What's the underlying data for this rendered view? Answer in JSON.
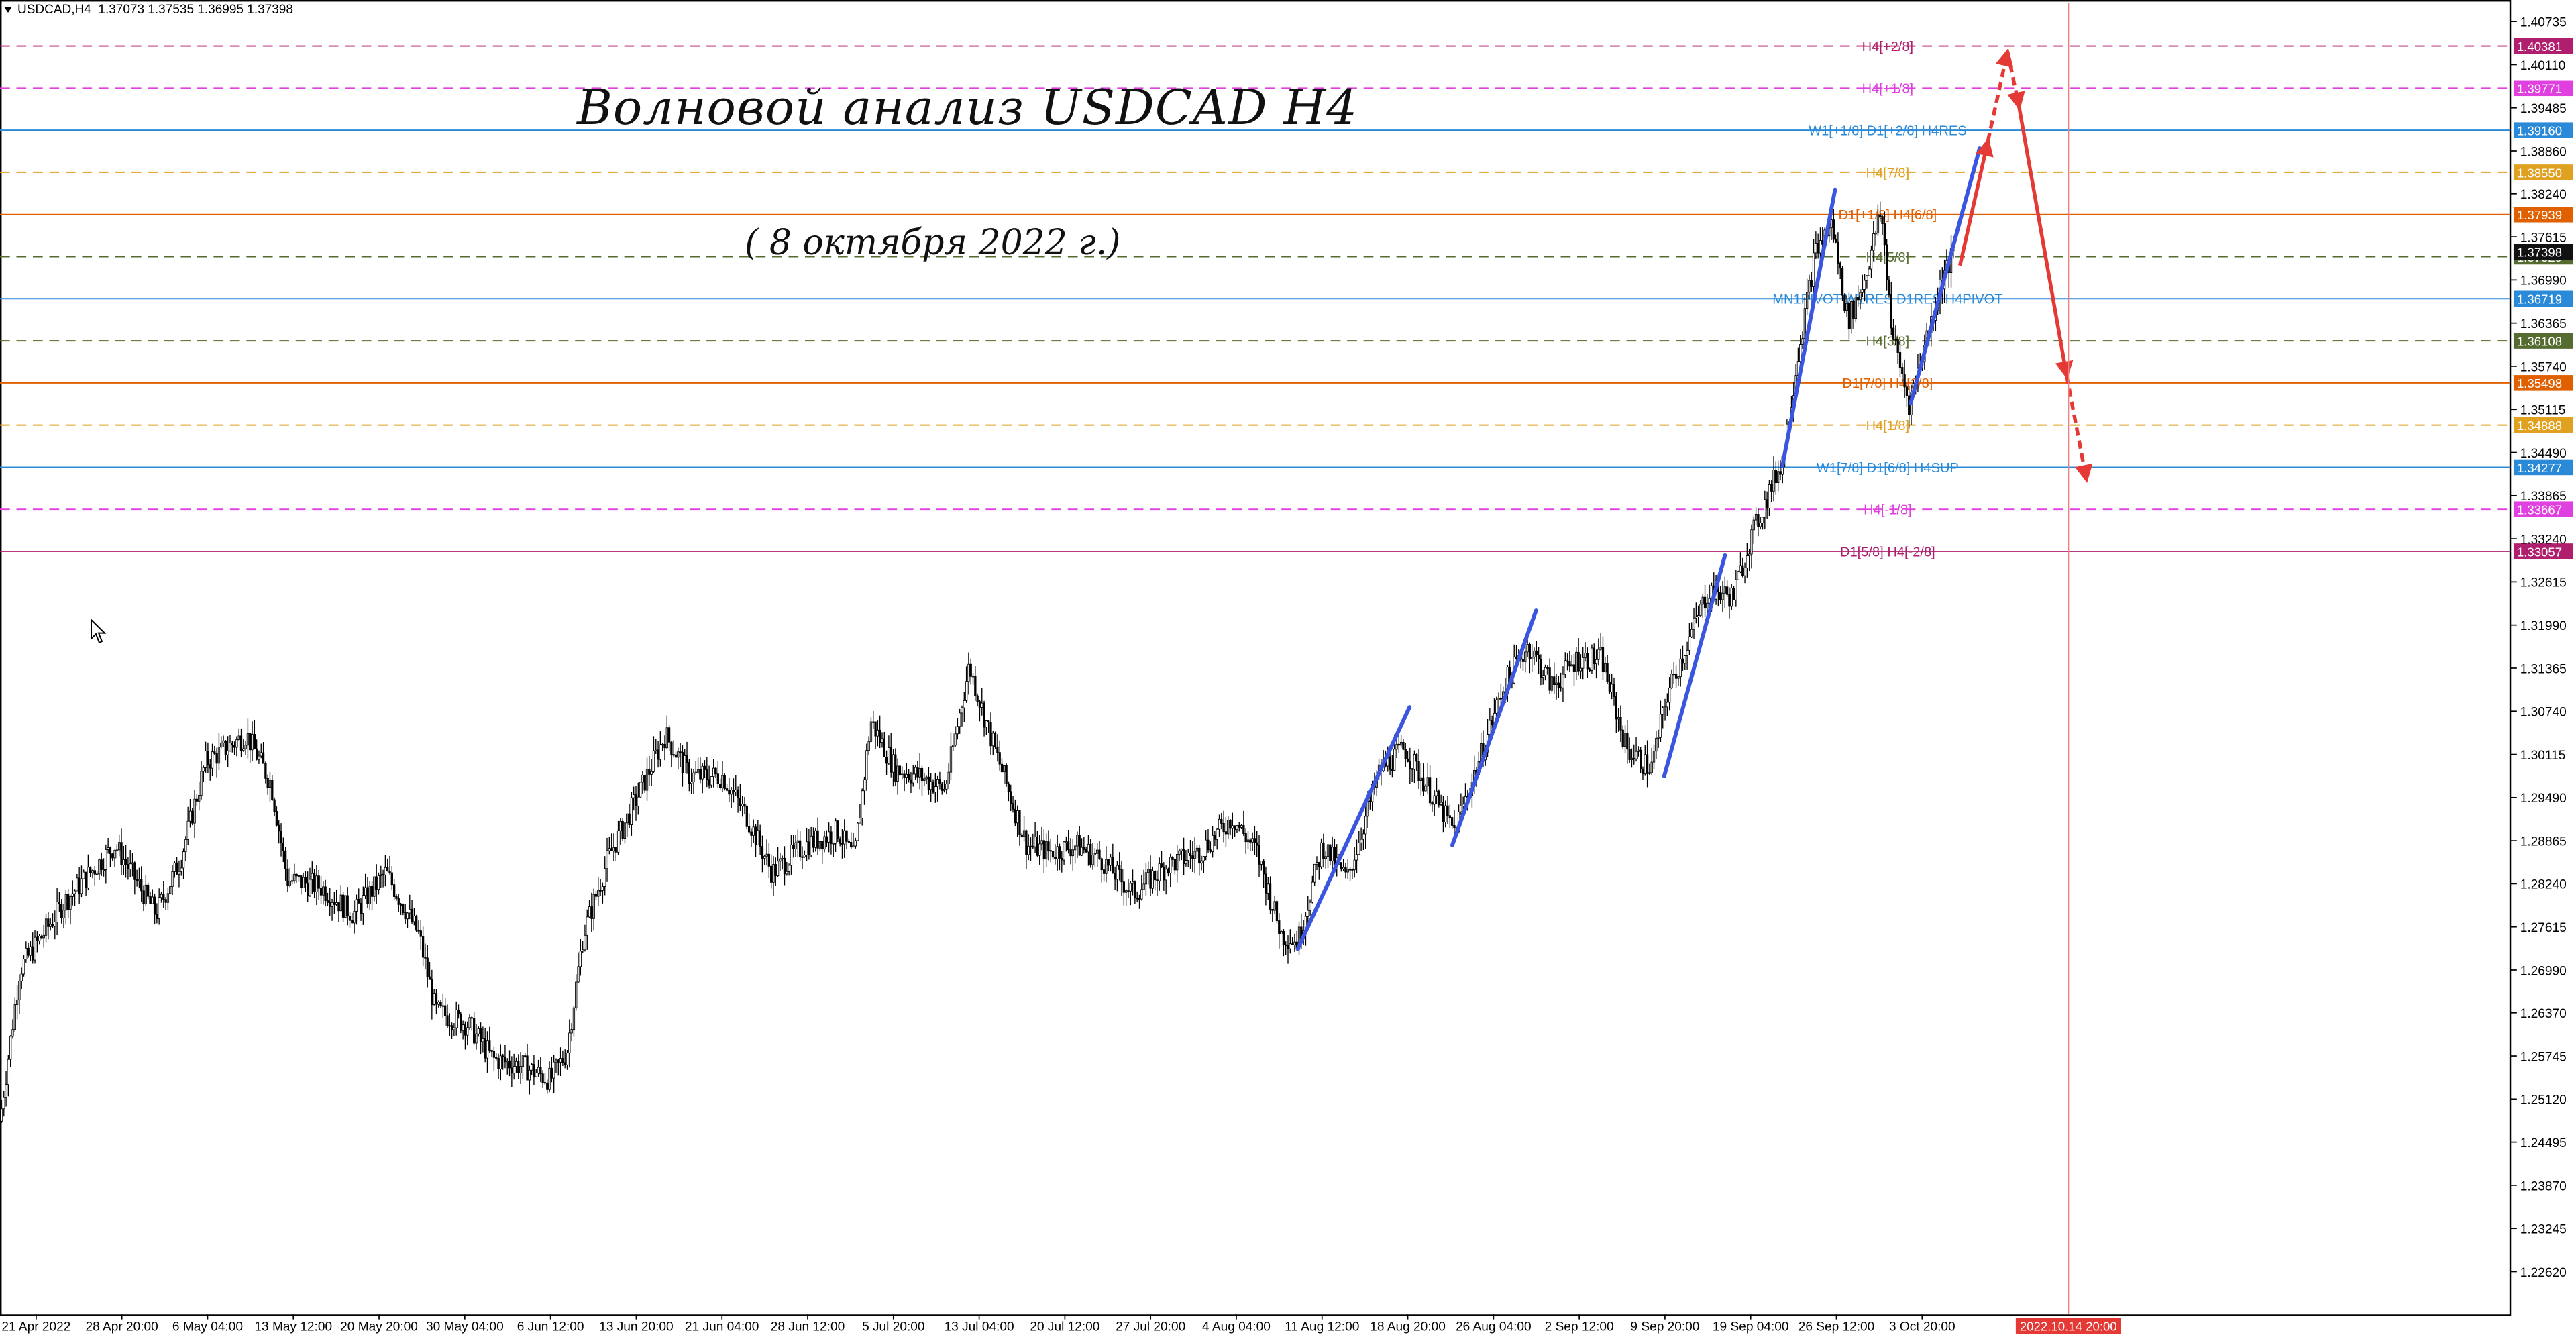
{
  "header": {
    "symbol": "USDCAD,H4",
    "ohlc": "1.37073 1.37535 1.36995 1.37398"
  },
  "annotation": {
    "title": "Волновой анализ USDCAD H4",
    "subtitle": "( 8 октября 2022 г.)"
  },
  "colors": {
    "background": "#ffffff",
    "candle": "#000000",
    "wave_blue": "#3a56e0",
    "forecast_red": "#e53935",
    "vline_red": "#f08080",
    "grid": "#d9d9d9"
  },
  "chart_data": {
    "type": "candlestick",
    "symbol": "USDCAD",
    "timeframe": "H4",
    "ylim": [
      1.22,
      1.41
    ],
    "y_ticks": [
      "1.40735",
      "1.40110",
      "1.39485",
      "1.38860",
      "1.38240",
      "1.37615",
      "1.36990",
      "1.36365",
      "1.35740",
      "1.35115",
      "1.34490",
      "1.33865",
      "1.33240",
      "1.32615",
      "1.31990",
      "1.31365",
      "1.30740",
      "1.30115",
      "1.29490",
      "1.28865",
      "1.28240",
      "1.27615",
      "1.26990",
      "1.26370",
      "1.25745",
      "1.25120",
      "1.24495",
      "1.23870",
      "1.23245",
      "1.22620"
    ],
    "x_labels": [
      "21 Apr 2022",
      "28 Apr 20:00",
      "6 May 04:00",
      "13 May 12:00",
      "20 May 20:00",
      "30 May 04:00",
      "6 Jun 12:00",
      "13 Jun 20:00",
      "21 Jun 04:00",
      "28 Jun 12:00",
      "5 Jul 20:00",
      "13 Jul 04:00",
      "20 Jul 12:00",
      "27 Jul 20:00",
      "4 Aug 04:00",
      "11 Aug 12:00",
      "18 Aug 20:00",
      "26 Aug 04:00",
      "2 Sep 12:00",
      "9 Sep 20:00",
      "19 Sep 04:00",
      "26 Sep 12:00",
      "3 Oct 20:00"
    ],
    "price_path": [
      [
        0,
        1.248
      ],
      [
        12,
        1.27
      ],
      [
        40,
        1.28
      ],
      [
        70,
        1.288
      ],
      [
        95,
        1.278
      ],
      [
        110,
        1.286
      ],
      [
        125,
        1.3
      ],
      [
        150,
        1.304
      ],
      [
        165,
        1.297
      ],
      [
        175,
        1.283
      ],
      [
        195,
        1.282
      ],
      [
        215,
        1.278
      ],
      [
        235,
        1.284
      ],
      [
        255,
        1.275
      ],
      [
        265,
        1.264
      ],
      [
        285,
        1.262
      ],
      [
        300,
        1.257
      ],
      [
        318,
        1.256
      ],
      [
        335,
        1.254
      ],
      [
        345,
        1.258
      ],
      [
        355,
        1.275
      ],
      [
        370,
        1.286
      ],
      [
        390,
        1.296
      ],
      [
        405,
        1.304
      ],
      [
        420,
        1.298
      ],
      [
        440,
        1.298
      ],
      [
        455,
        1.292
      ],
      [
        470,
        1.284
      ],
      [
        490,
        1.288
      ],
      [
        510,
        1.29
      ],
      [
        520,
        1.286
      ],
      [
        530,
        1.306
      ],
      [
        545,
        1.299
      ],
      [
        560,
        1.298
      ],
      [
        575,
        1.296
      ],
      [
        590,
        1.314
      ],
      [
        600,
        1.306
      ],
      [
        615,
        1.295
      ],
      [
        625,
        1.288
      ],
      [
        640,
        1.287
      ],
      [
        655,
        1.288
      ],
      [
        670,
        1.286
      ],
      [
        690,
        1.281
      ],
      [
        710,
        1.285
      ],
      [
        730,
        1.287
      ],
      [
        750,
        1.292
      ],
      [
        765,
        1.287
      ],
      [
        780,
        1.275
      ],
      [
        790,
        1.274
      ],
      [
        805,
        1.288
      ],
      [
        820,
        1.283
      ],
      [
        840,
        1.299
      ],
      [
        855,
        1.302
      ],
      [
        870,
        1.296
      ],
      [
        885,
        1.29
      ],
      [
        900,
        1.3
      ],
      [
        915,
        1.311
      ],
      [
        930,
        1.317
      ],
      [
        945,
        1.311
      ],
      [
        960,
        1.315
      ],
      [
        975,
        1.315
      ],
      [
        990,
        1.302
      ],
      [
        1005,
        1.299
      ],
      [
        1015,
        1.31
      ],
      [
        1025,
        1.316
      ],
      [
        1040,
        1.325
      ],
      [
        1055,
        1.324
      ],
      [
        1065,
        1.332
      ],
      [
        1075,
        1.338
      ],
      [
        1085,
        1.344
      ],
      [
        1095,
        1.36
      ],
      [
        1105,
        1.374
      ],
      [
        1115,
        1.378
      ],
      [
        1125,
        1.364
      ],
      [
        1135,
        1.37
      ],
      [
        1145,
        1.38
      ],
      [
        1152,
        1.362
      ],
      [
        1162,
        1.352
      ],
      [
        1172,
        1.361
      ],
      [
        1182,
        1.37
      ],
      [
        1190,
        1.374
      ]
    ],
    "last_price": 1.37398,
    "murrey_levels": [
      {
        "label": "H4[+2/8]",
        "price": 1.40381,
        "price_text": "1.40381",
        "color": "#b01e6e",
        "line": "dashed"
      },
      {
        "label": "H4[+1/8]",
        "price": 1.39771,
        "price_text": "1.39771",
        "color": "#e040e0",
        "line": "dashed"
      },
      {
        "label": "W1[+1/8] D1[+2/8] H4RES",
        "price": 1.3916,
        "price_text": "1.39160",
        "color": "#2b8ad8",
        "line": "solid"
      },
      {
        "label": "H4[7/8]",
        "price": 1.3855,
        "price_text": "1.38550",
        "color": "#e0a020",
        "line": "dashed"
      },
      {
        "label": "D1[+1/8] H4[6/8]",
        "price": 1.37939,
        "price_text": "1.37939",
        "color": "#e06000",
        "line": "solid"
      },
      {
        "label": "H4[5/8]",
        "price": 1.37329,
        "price_text": "1.37329",
        "color": "#556b2f",
        "line": "dashed"
      },
      {
        "label": "MN1PIVOT W1RES D1RES H4PIVOT",
        "price": 1.36719,
        "price_text": "1.36719",
        "color": "#2b8ad8",
        "line": "solid"
      },
      {
        "label": "H4[3/8]",
        "price": 1.36108,
        "price_text": "1.36108",
        "color": "#556b2f",
        "line": "dashed"
      },
      {
        "label": "D1[7/8] H4[2/8]",
        "price": 1.35498,
        "price_text": "1.35498",
        "color": "#e06000",
        "line": "solid"
      },
      {
        "label": "H4[1/8]",
        "price": 1.34888,
        "price_text": "1.34888",
        "color": "#e0a020",
        "line": "dashed"
      },
      {
        "label": "W1[7/8] D1[6/8] H4SUP",
        "price": 1.34277,
        "price_text": "1.34277",
        "color": "#2b8ad8",
        "line": "solid"
      },
      {
        "label": "H4[-1/8]",
        "price": 1.33667,
        "price_text": "1.33667",
        "color": "#e040e0",
        "line": "dashed"
      },
      {
        "label": "D1[5/8] H4[-2/8]",
        "price": 1.33057,
        "price_text": "1.33057",
        "color": "#b01e6e",
        "line": "solid"
      }
    ],
    "current_price_tag": "1.37398",
    "wave_lines": [
      {
        "from": [
          790,
          1.273
        ],
        "to": [
          858,
          1.308
        ]
      },
      {
        "from": [
          884,
          1.288
        ],
        "to": [
          935,
          1.322
        ]
      },
      {
        "from": [
          1013,
          1.298
        ],
        "to": [
          1050,
          1.33
        ]
      },
      {
        "from": [
          1085,
          1.343
        ],
        "to": [
          1117,
          1.383
        ]
      },
      {
        "from": [
          1163,
          1.352
        ],
        "to": [
          1205,
          1.389
        ]
      }
    ],
    "forecast": [
      {
        "from": [
          1193,
          1.372
        ],
        "to": [
          1210,
          1.39
        ],
        "style": "solid"
      },
      {
        "from": [
          1210,
          1.39
        ],
        "to": [
          1222,
          1.403
        ],
        "style": "dashed"
      },
      {
        "from": [
          1222,
          1.403
        ],
        "to": [
          1229,
          1.395
        ],
        "style": "dashed"
      },
      {
        "from": [
          1229,
          1.395
        ],
        "to": [
          1258,
          1.356
        ],
        "style": "solid"
      },
      {
        "from": [
          1258,
          1.356
        ],
        "to": [
          1270,
          1.341
        ],
        "style": "dashed"
      }
    ],
    "vline": {
      "x": 1259,
      "label": "2022.10.14 20:00"
    },
    "grid": false
  }
}
